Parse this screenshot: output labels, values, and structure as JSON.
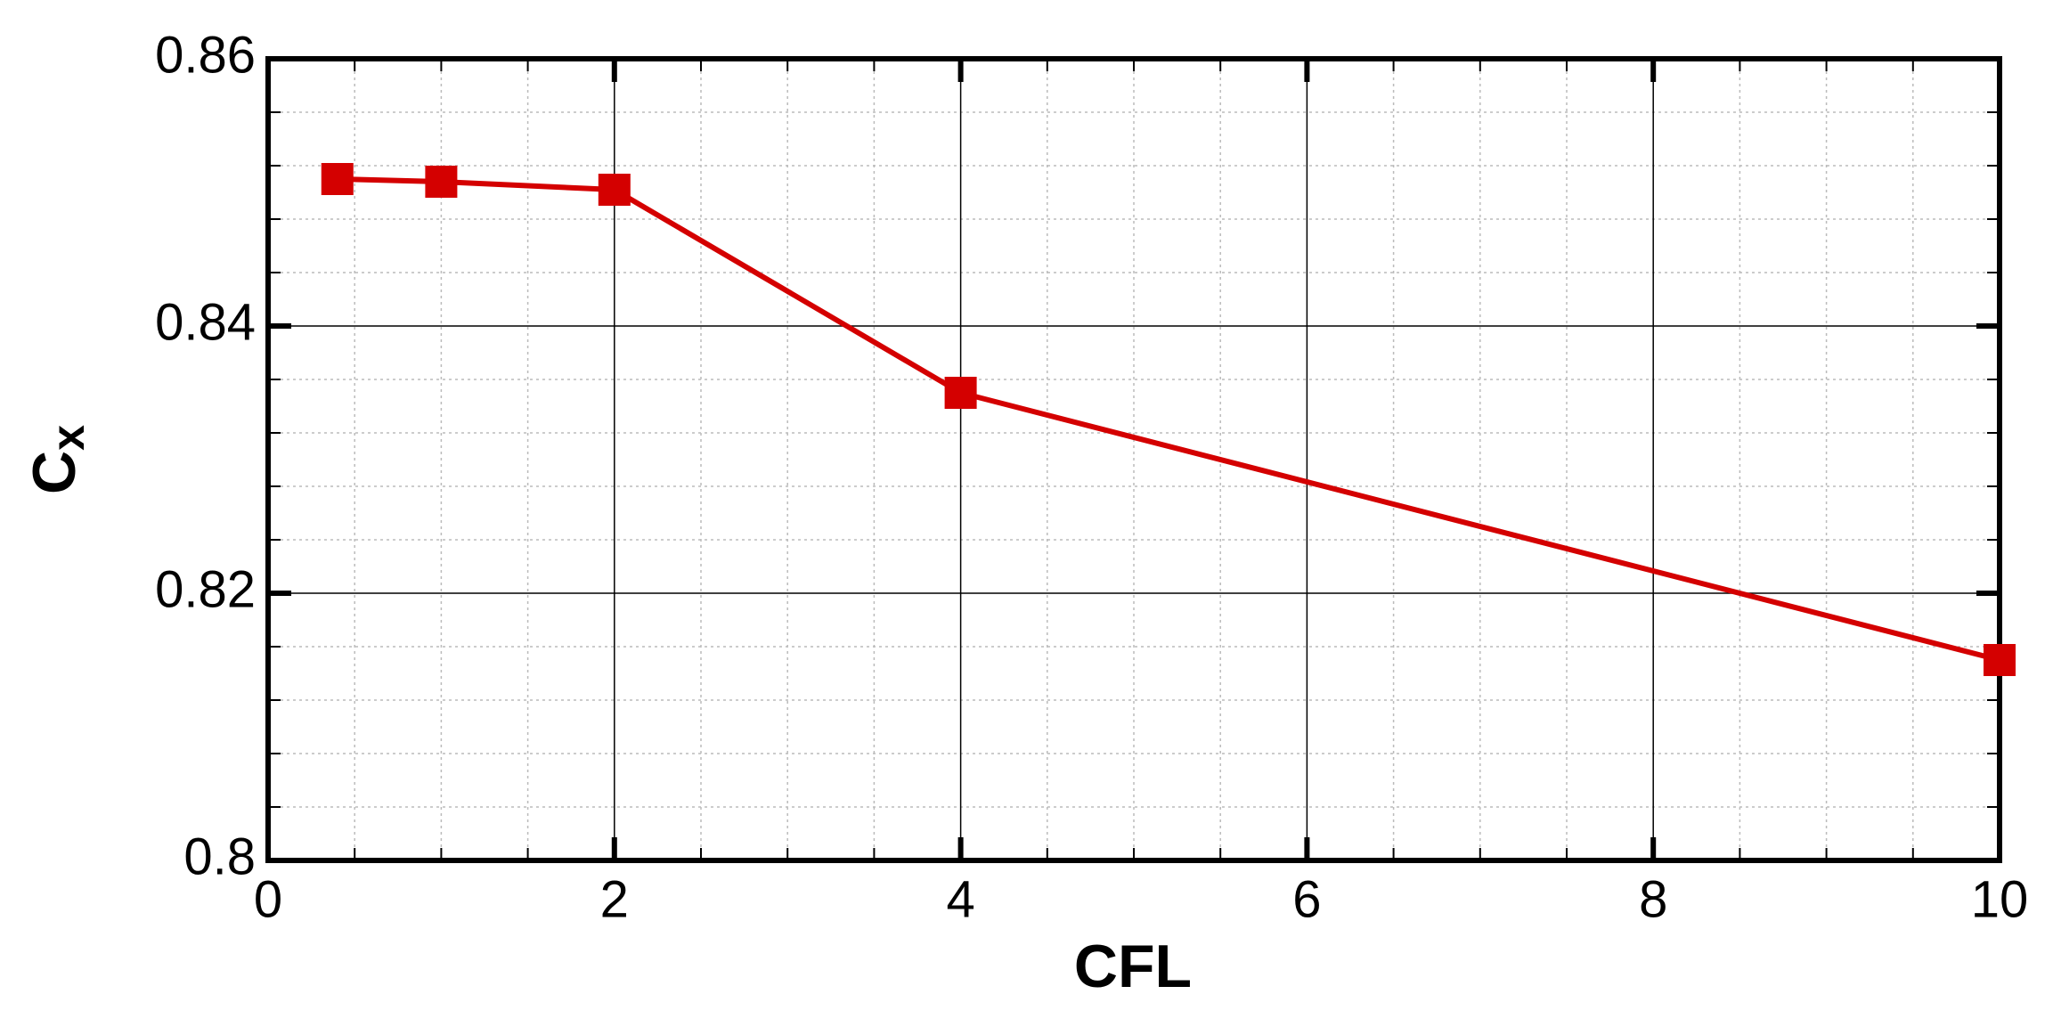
{
  "chart_data": {
    "type": "line",
    "x_label": "CFL",
    "y_label": {
      "text": "C",
      "subscript": "x"
    },
    "x": [
      0.4,
      1,
      2,
      4,
      10
    ],
    "series": [
      {
        "color": "#d40000",
        "values": [
          0.851,
          0.8508,
          0.8502,
          0.835,
          0.815
        ]
      }
    ],
    "xlim": [
      0,
      10
    ],
    "xticks": [
      0,
      2,
      4,
      6,
      8,
      10
    ],
    "ylim": [
      0.8,
      0.86
    ],
    "yticks": [
      0.8,
      0.82,
      0.84,
      0.86
    ],
    "grid": true
  }
}
